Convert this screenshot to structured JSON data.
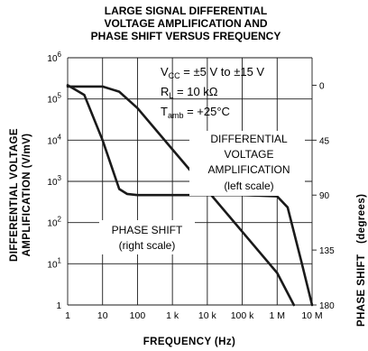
{
  "chart_data": {
    "type": "line",
    "title": [
      "LARGE SIGNAL DIFFERENTIAL",
      "VOLTAGE AMPLIFICATION AND",
      "PHASE SHIFT VERSUS FREQUENCY"
    ],
    "xlabel": "FREQUENCY (Hz)",
    "ylabel_left": [
      "DIFFERENTIAL VOLTAGE",
      "AMPLIFICATION (V/mV)"
    ],
    "ylabel_right": [
      "PHASE SHIFT",
      "(degrees)"
    ],
    "x_scale": "log",
    "xlim": [
      1,
      10000000
    ],
    "x_ticks": [
      {
        "value": 1,
        "label": "1"
      },
      {
        "value": 10,
        "label": "10"
      },
      {
        "value": 100,
        "label": "100"
      },
      {
        "value": 1000,
        "label": "1 k"
      },
      {
        "value": 10000,
        "label": "10 k"
      },
      {
        "value": 100000,
        "label": "100 k"
      },
      {
        "value": 1000000,
        "label": "1 M"
      },
      {
        "value": 10000000,
        "label": "10 M"
      }
    ],
    "y_left_scale": "log",
    "ylim_left": [
      1,
      1000000
    ],
    "y_left_ticks": [
      {
        "value": 1,
        "base": "1",
        "exp": ""
      },
      {
        "value": 10,
        "base": "10",
        "exp": "1"
      },
      {
        "value": 100,
        "base": "10",
        "exp": "2"
      },
      {
        "value": 1000,
        "base": "10",
        "exp": "3"
      },
      {
        "value": 10000,
        "base": "10",
        "exp": "4"
      },
      {
        "value": 100000,
        "base": "10",
        "exp": "5"
      },
      {
        "value": 1000000,
        "base": "10",
        "exp": "6"
      }
    ],
    "y_right_scale": "linear",
    "ylim_right": [
      180,
      -22.5
    ],
    "y_right_ticks": [
      {
        "value": 0,
        "label": "0"
      },
      {
        "value": 45,
        "label": "45"
      },
      {
        "value": 90,
        "label": "90"
      },
      {
        "value": 135,
        "label": "135"
      },
      {
        "value": 180,
        "label": "180"
      }
    ],
    "grid": true,
    "series": [
      {
        "axis": "left",
        "x": [
          1,
          10,
          30,
          100,
          1000,
          10000,
          100000,
          1000000,
          3000000
        ],
        "y": [
          200000,
          200000,
          150000,
          60000,
          6000,
          600,
          60,
          6,
          1
        ]
      },
      {
        "axis": "right",
        "x": [
          1,
          3,
          10,
          30,
          50,
          100,
          1000,
          10000,
          100000,
          1000000,
          2000000,
          5000000,
          10000000
        ],
        "y": [
          0,
          8,
          45,
          85,
          89,
          90,
          90,
          90,
          90,
          91,
          100,
          145,
          180
        ]
      }
    ],
    "annotations": {
      "conditions": [
        {
          "main": "V",
          "sub": "CC",
          "rest": " = ±5 V to ±15 V"
        },
        {
          "main": "R",
          "sub": "L",
          "rest": " = 10 kΩ"
        },
        {
          "main": "T",
          "sub": "amb",
          "rest": " = +25°C"
        }
      ],
      "diff_label": [
        "DIFFERENTIAL",
        "VOLTAGE",
        "AMPLIFICATION"
      ],
      "diff_scale": "(left scale)",
      "phase_label": "PHASE SHIFT",
      "phase_scale": "(right scale)"
    }
  }
}
